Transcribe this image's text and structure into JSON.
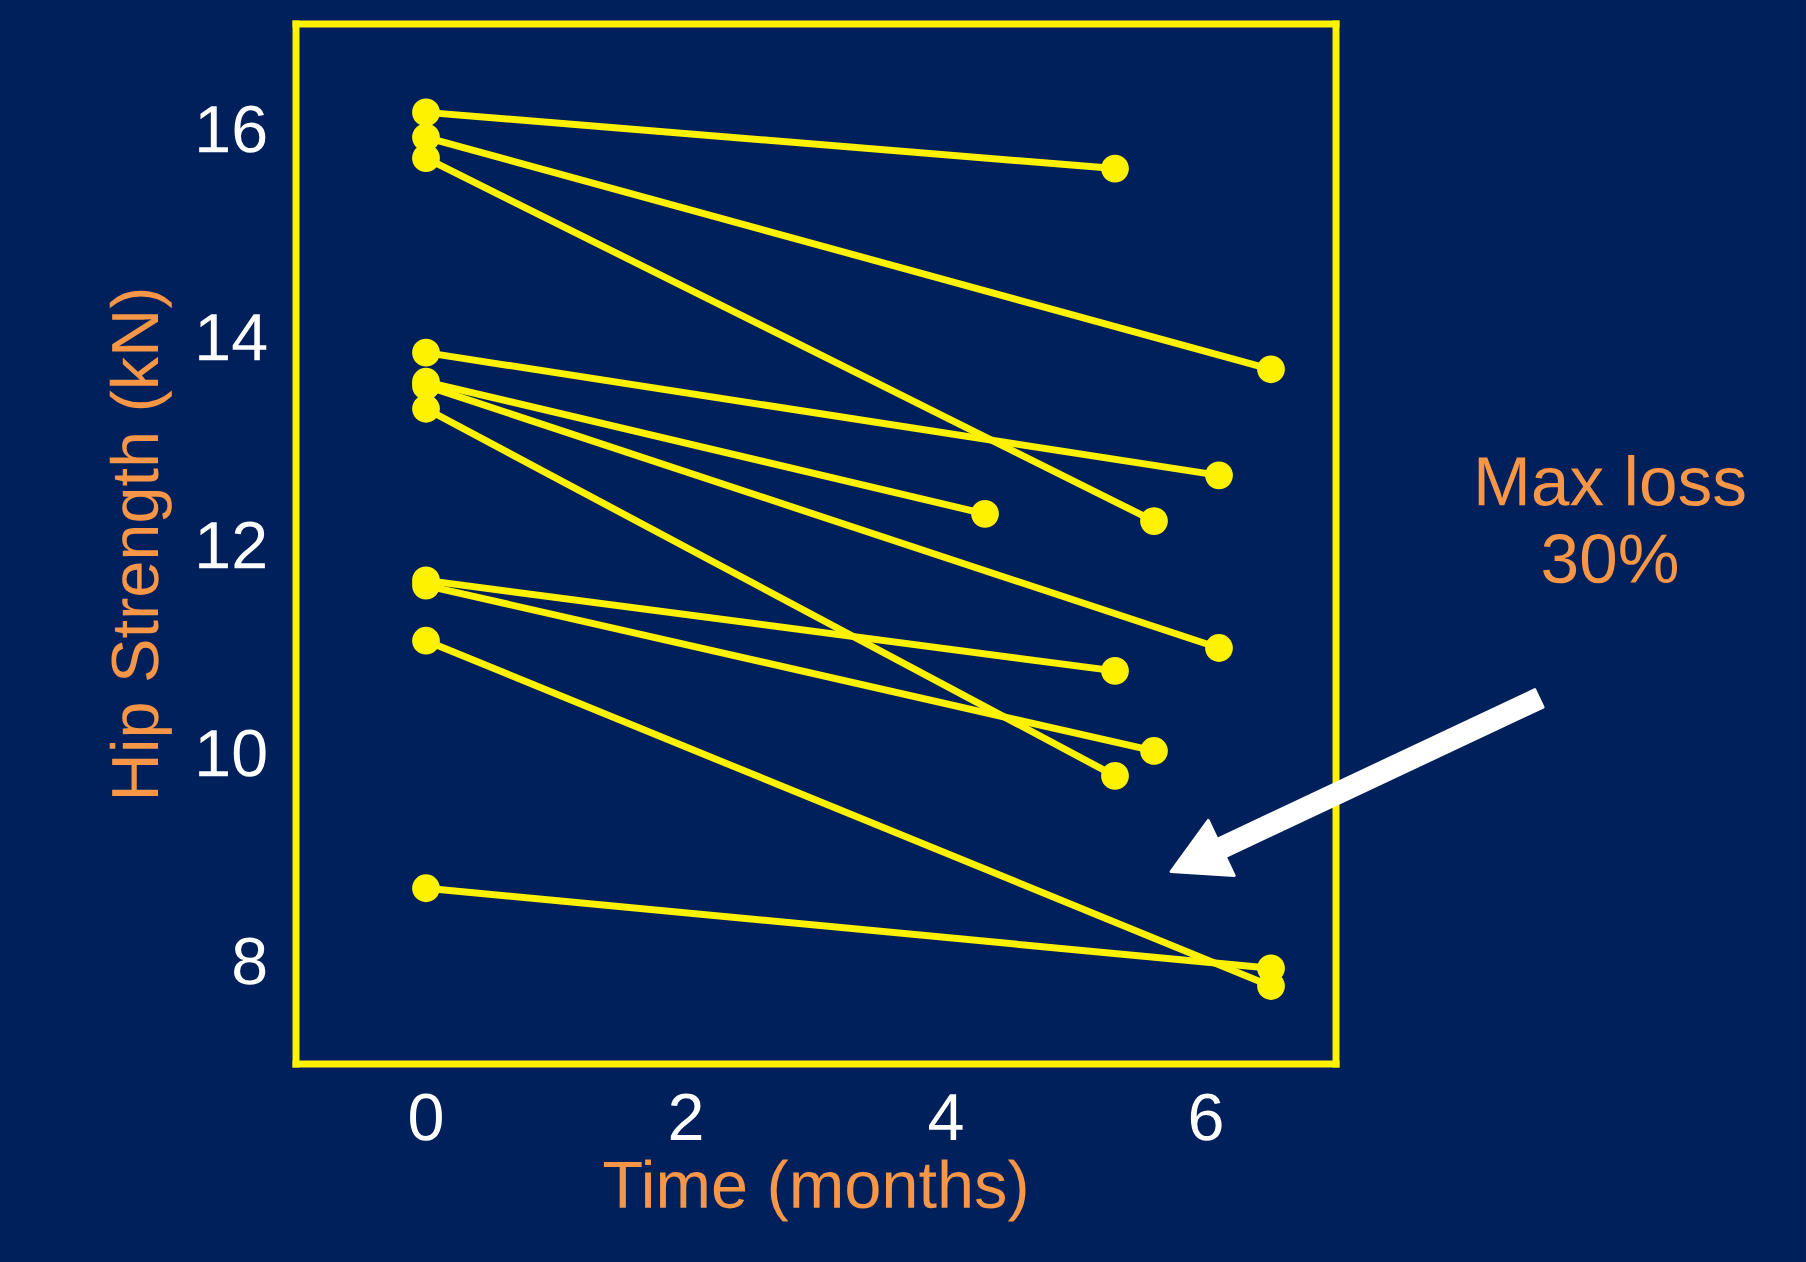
{
  "chart_data": {
    "type": "line",
    "xlabel": "Time (months)",
    "ylabel": "Hip Strength (kN)",
    "xlim": [
      -1,
      7
    ],
    "ylim": [
      7,
      17
    ],
    "xticks": [
      0,
      2,
      4,
      6
    ],
    "yticks": [
      8,
      10,
      12,
      14,
      16
    ],
    "grid": false,
    "legend": false,
    "marker": "circle",
    "line_style": "solid",
    "annotations": [
      "Max loss\n30%"
    ],
    "series": [
      {
        "color": "#fff200",
        "x": [
          0,
          5.3
        ],
        "values": [
          16.15,
          15.61
        ]
      },
      {
        "color": "#fff200",
        "x": [
          0,
          6.5
        ],
        "values": [
          15.91,
          13.68
        ]
      },
      {
        "color": "#fff200",
        "x": [
          0,
          5.6
        ],
        "values": [
          15.71,
          12.22
        ]
      },
      {
        "color": "#fff200",
        "x": [
          0,
          6.1
        ],
        "values": [
          13.84,
          12.66
        ]
      },
      {
        "color": "#fff200",
        "x": [
          0,
          4.3
        ],
        "values": [
          13.56,
          12.29
        ]
      },
      {
        "color": "#fff200",
        "x": [
          0,
          6.1
        ],
        "values": [
          13.52,
          11.0
        ]
      },
      {
        "color": "#fff200",
        "x": [
          0,
          5.3
        ],
        "values": [
          13.3,
          9.77
        ]
      },
      {
        "color": "#fff200",
        "x": [
          0,
          5.3
        ],
        "values": [
          11.65,
          10.78
        ]
      },
      {
        "color": "#fff200",
        "x": [
          0,
          5.6
        ],
        "values": [
          11.6,
          10.01
        ]
      },
      {
        "color": "#fff200",
        "x": [
          0,
          6.5
        ],
        "values": [
          11.07,
          7.75
        ]
      },
      {
        "color": "#fff200",
        "x": [
          0,
          6.5
        ],
        "values": [
          8.69,
          7.92
        ]
      }
    ]
  }
}
